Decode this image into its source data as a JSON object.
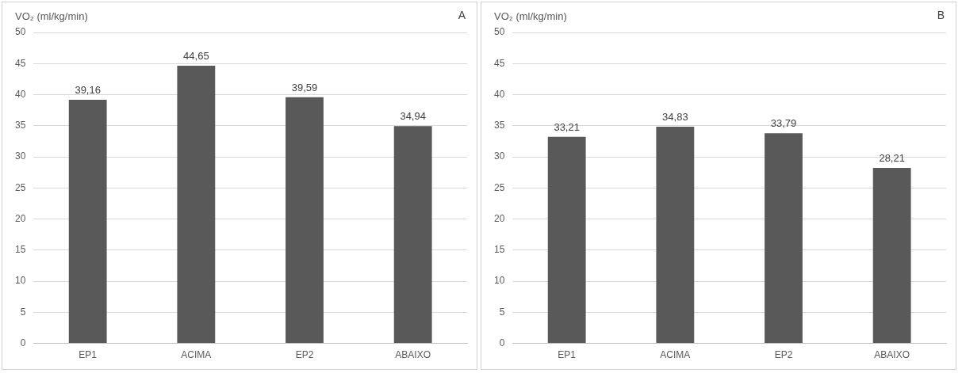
{
  "chart_data": [
    {
      "type": "bar",
      "ylabel": "VO₂ (ml/kg/min)",
      "annotations": [
        "A"
      ],
      "categories": [
        "EP1",
        "ACIMA",
        "EP2",
        "ABAIXO"
      ],
      "values": [
        39.16,
        44.65,
        39.59,
        34.94
      ],
      "value_labels": [
        "39,16",
        "44,65",
        "39,59",
        "34,94"
      ],
      "color": "#595959",
      "ylim": [
        0,
        50
      ],
      "yticks": [
        0,
        5,
        10,
        15,
        20,
        25,
        30,
        35,
        40,
        45,
        50
      ],
      "grid": "y"
    },
    {
      "type": "bar",
      "ylabel": "VO₂ (ml/kg/min)",
      "annotations": [
        "B"
      ],
      "categories": [
        "EP1",
        "ACIMA",
        "EP2",
        "ABAIXO"
      ],
      "values": [
        33.21,
        34.83,
        33.79,
        28.21
      ],
      "value_labels": [
        "33,21",
        "34,83",
        "33,79",
        "28,21"
      ],
      "color": "#595959",
      "ylim": [
        0,
        50
      ],
      "yticks": [
        0,
        5,
        10,
        15,
        20,
        25,
        30,
        35,
        40,
        45,
        50
      ],
      "grid": "y"
    }
  ]
}
